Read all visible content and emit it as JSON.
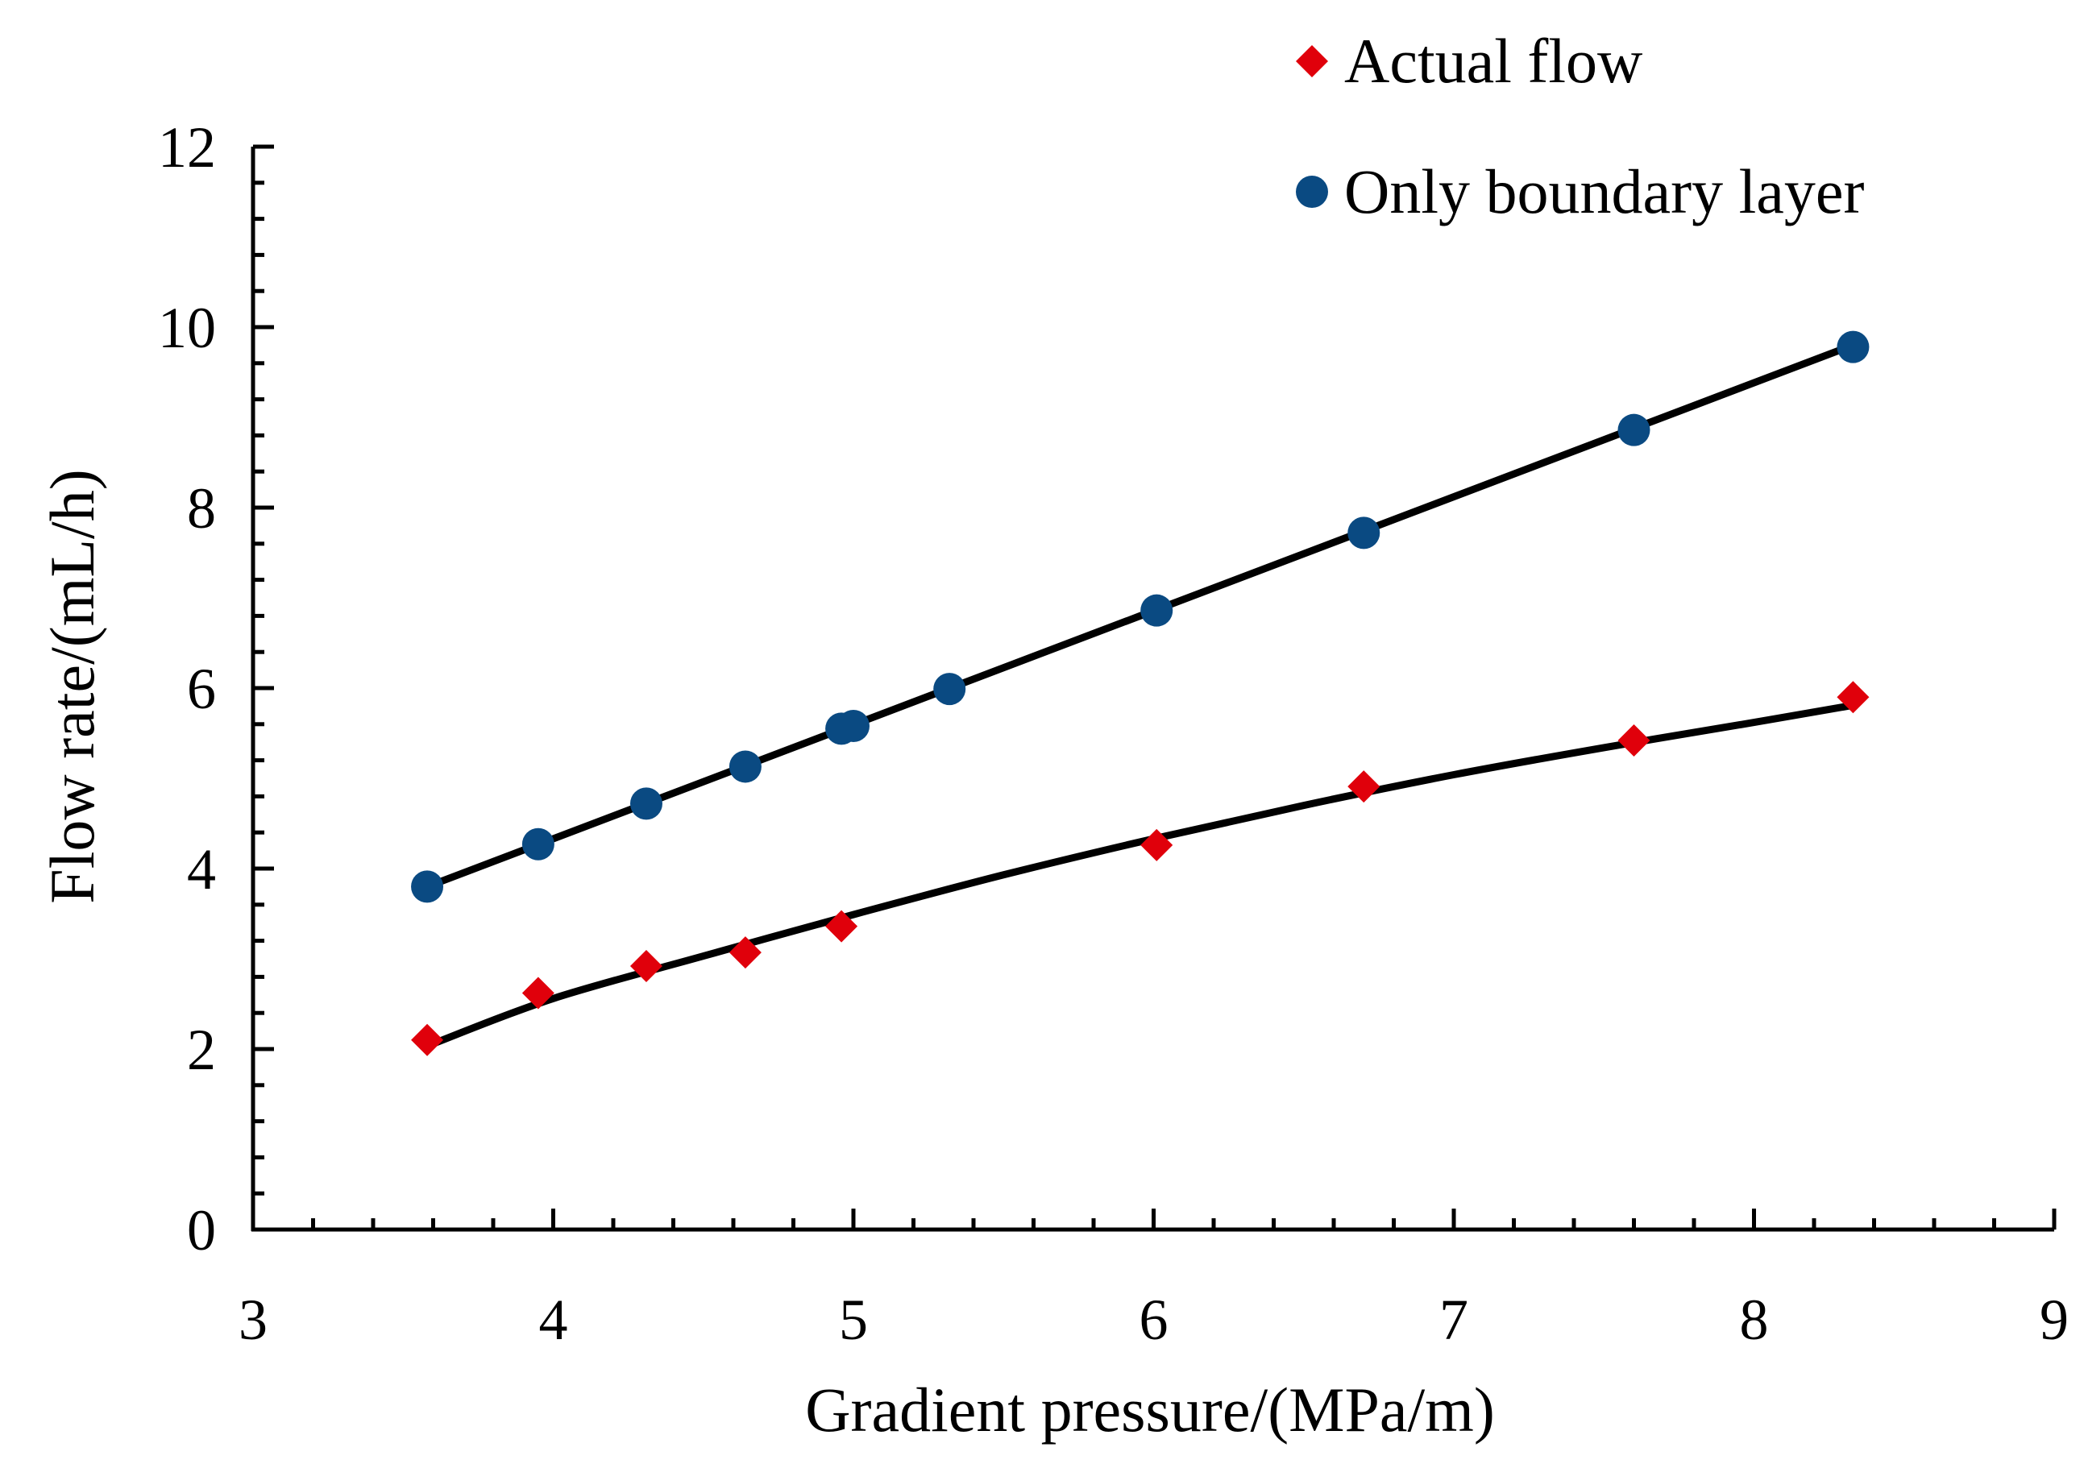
{
  "chart_data": {
    "type": "scatter",
    "title": "",
    "xlabel": "Gradient pressure/(MPa/m)",
    "ylabel": "Flow rate/(mL/h)",
    "xlim": [
      3,
      9
    ],
    "ylim": [
      0,
      12
    ],
    "x_ticks": [
      3,
      4,
      5,
      6,
      7,
      8,
      9
    ],
    "y_ticks": [
      0,
      2,
      4,
      6,
      8,
      10,
      12
    ],
    "x_minor_step": 0.2,
    "y_minor_step": 0.4,
    "grid": false,
    "legend_position": "top-right",
    "series": [
      {
        "name": "Actual flow",
        "marker": "diamond",
        "color": "#e0000b",
        "x": [
          3.58,
          3.95,
          4.31,
          4.64,
          4.96,
          6.01,
          6.7,
          7.6,
          8.33
        ],
        "y": [
          2.1,
          2.62,
          2.92,
          3.07,
          3.36,
          4.26,
          4.91,
          5.42,
          5.9
        ],
        "trend": {
          "kind": "power",
          "x": [
            3.6,
            4.0,
            4.5,
            5.0,
            5.5,
            6.0,
            6.5,
            7.0,
            7.5,
            8.0,
            8.33
          ],
          "y": [
            2.06,
            2.56,
            3.03,
            3.49,
            3.93,
            4.33,
            4.7,
            5.04,
            5.34,
            5.62,
            5.81
          ]
        }
      },
      {
        "name": "Only boundary layer",
        "marker": "circle",
        "color": "#0a4a82",
        "x": [
          3.58,
          3.95,
          4.31,
          4.64,
          4.96,
          5.0,
          5.32,
          6.01,
          6.7,
          7.6,
          8.33
        ],
        "y": [
          3.8,
          4.27,
          4.72,
          5.13,
          5.55,
          5.58,
          5.99,
          6.86,
          7.72,
          8.86,
          9.78
        ],
        "trend": {
          "kind": "linear",
          "x": [
            3.58,
            8.33
          ],
          "y": [
            3.8,
            9.8
          ]
        }
      }
    ]
  }
}
